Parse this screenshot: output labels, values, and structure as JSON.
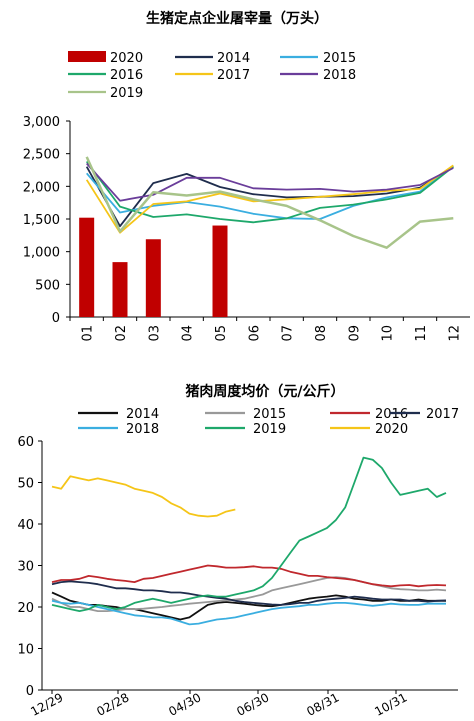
{
  "chart_data": [
    {
      "type": "line",
      "title": "生猪定点企业屠宰量（万头）",
      "categories": [
        "01",
        "02",
        "03",
        "04",
        "05",
        "06",
        "07",
        "08",
        "09",
        "10",
        "11",
        "12"
      ],
      "ylim": [
        0,
        3000
      ],
      "yticks": [
        "0",
        "500",
        "1,000",
        "1,500",
        "2,000",
        "2,500",
        "3,000"
      ],
      "legend": "top",
      "bars": {
        "name": "2020",
        "color": "#c00000",
        "values": [
          1520,
          840,
          1190,
          null,
          1400,
          null,
          null,
          null,
          null,
          null,
          null,
          null
        ]
      },
      "series": [
        {
          "name": "2014",
          "color": "#1f2d4d",
          "values": [
            2300,
            1390,
            2050,
            2190,
            1990,
            1880,
            1830,
            1840,
            1850,
            1890,
            1980,
            2300
          ]
        },
        {
          "name": "2015",
          "color": "#3aaee0",
          "values": [
            2200,
            1600,
            1700,
            1760,
            1690,
            1580,
            1510,
            1500,
            1700,
            1830,
            1920,
            2310
          ]
        },
        {
          "name": "2016",
          "color": "#1ea86b",
          "values": [
            2380,
            1690,
            1530,
            1570,
            1500,
            1450,
            1510,
            1670,
            1720,
            1800,
            1900,
            2300
          ]
        },
        {
          "name": "2017",
          "color": "#f5c518",
          "values": [
            2100,
            1290,
            1730,
            1770,
            1890,
            1770,
            1800,
            1840,
            1880,
            1930,
            1960,
            2320
          ]
        },
        {
          "name": "2018",
          "color": "#6a3d9a",
          "values": [
            2350,
            1780,
            1870,
            2130,
            2130,
            1970,
            1950,
            1960,
            1920,
            1950,
            2020,
            2280
          ]
        },
        {
          "name": "2019",
          "color": "#a8c48a",
          "values": [
            2450,
            1310,
            1910,
            1860,
            1920,
            1800,
            1700,
            1480,
            1240,
            1060,
            1460,
            1510
          ]
        }
      ]
    },
    {
      "type": "line",
      "title": "猪肉周度均价（元/公斤）",
      "xticks": [
        "12/29",
        "02/28",
        "04/30",
        "06/30",
        "08/31",
        "10/31"
      ],
      "ylim": [
        0,
        60
      ],
      "yticks": [
        "0",
        "10",
        "20",
        "30",
        "40",
        "50",
        "60"
      ],
      "legend": "top",
      "series": [
        {
          "name": "2014",
          "color": "#111111",
          "values": [
            23.5,
            22.5,
            21.5,
            21.0,
            20.5,
            20.5,
            20.2,
            20.0,
            19.5,
            19.5,
            19.0,
            18.5,
            18.0,
            17.5,
            17.0,
            17.5,
            19.0,
            20.5,
            21.0,
            21.2,
            21.0,
            20.8,
            20.5,
            20.3,
            20.2,
            20.5,
            21.0,
            21.5,
            22.0,
            22.3,
            22.5,
            22.8,
            22.5,
            22.0,
            21.8,
            21.5,
            21.5,
            21.8,
            21.5,
            21.5,
            21.8,
            21.5,
            21.5,
            21.5
          ]
        },
        {
          "name": "2015",
          "color": "#999999",
          "values": [
            22.0,
            21.0,
            20.0,
            20.0,
            19.5,
            19.0,
            19.0,
            19.2,
            19.5,
            19.5,
            19.6,
            19.8,
            20.0,
            20.3,
            20.5,
            20.8,
            21.0,
            21.2,
            21.4,
            21.6,
            21.8,
            22.0,
            22.5,
            23.0,
            24.0,
            24.5,
            25.0,
            25.5,
            26.0,
            26.5,
            27.0,
            27.2,
            27.0,
            26.5,
            26.0,
            25.5,
            25.0,
            24.5,
            24.3,
            24.2,
            24.0,
            24.0,
            24.2,
            24.0
          ]
        },
        {
          "name": "2016",
          "color": "#c0282d",
          "values": [
            26.0,
            26.5,
            26.5,
            26.8,
            27.5,
            27.2,
            26.8,
            26.5,
            26.3,
            26.0,
            26.8,
            27.0,
            27.5,
            28.0,
            28.5,
            29.0,
            29.5,
            30.0,
            29.8,
            29.5,
            29.5,
            29.6,
            29.8,
            29.5,
            29.5,
            29.2,
            28.5,
            28.0,
            27.5,
            27.5,
            27.2,
            27.0,
            26.8,
            26.5,
            26.0,
            25.5,
            25.2,
            25.0,
            25.2,
            25.3,
            25.0,
            25.2,
            25.3,
            25.2
          ]
        },
        {
          "name": "2017",
          "color": "#1f2d4d",
          "values": [
            25.5,
            26.0,
            26.2,
            26.0,
            25.8,
            25.5,
            25.0,
            24.5,
            24.5,
            24.3,
            24.0,
            24.0,
            23.8,
            23.5,
            23.5,
            23.2,
            22.8,
            22.5,
            22.2,
            22.0,
            21.5,
            21.2,
            21.0,
            20.8,
            20.6,
            20.5,
            20.7,
            21.0,
            21.0,
            21.5,
            21.8,
            22.0,
            22.2,
            22.5,
            22.3,
            22.0,
            21.8,
            21.8,
            21.8,
            21.5,
            21.5,
            21.3,
            21.5,
            21.6
          ]
        },
        {
          "name": "2018",
          "color": "#3aaee0",
          "values": [
            21.5,
            21.0,
            20.8,
            21.0,
            20.5,
            20.0,
            19.5,
            19.0,
            18.5,
            18.0,
            17.8,
            17.5,
            17.5,
            17.2,
            16.5,
            15.8,
            16.0,
            16.5,
            17.0,
            17.2,
            17.5,
            18.0,
            18.5,
            19.0,
            19.5,
            19.8,
            20.0,
            20.2,
            20.5,
            20.5,
            20.8,
            21.0,
            21.0,
            20.8,
            20.5,
            20.3,
            20.5,
            20.8,
            20.6,
            20.5,
            20.5,
            20.8,
            20.8,
            20.8
          ]
        },
        {
          "name": "2019",
          "color": "#1ea86b",
          "values": [
            20.5,
            20.0,
            19.5,
            19.0,
            19.5,
            20.5,
            20.0,
            19.5,
            20.0,
            21.0,
            21.5,
            22.0,
            21.5,
            21.0,
            21.5,
            22.0,
            22.5,
            22.8,
            22.5,
            22.5,
            23.0,
            23.5,
            24.0,
            25.0,
            27.0,
            30.0,
            33.0,
            36.0,
            37.0,
            38.0,
            39.0,
            41.0,
            44.0,
            50.0,
            56.0,
            55.5,
            53.5,
            50.0,
            47.0,
            47.5,
            48.0,
            48.5,
            46.5,
            47.5
          ]
        },
        {
          "name": "2020",
          "color": "#f5c518",
          "values": [
            49.0,
            48.5,
            51.5,
            51.0,
            50.5,
            51.0,
            50.5,
            50.0,
            49.5,
            48.5,
            48.0,
            47.5,
            46.5,
            45.0,
            44.0,
            42.5,
            42.0,
            41.8,
            42.0,
            43.0,
            43.5
          ]
        }
      ]
    }
  ]
}
